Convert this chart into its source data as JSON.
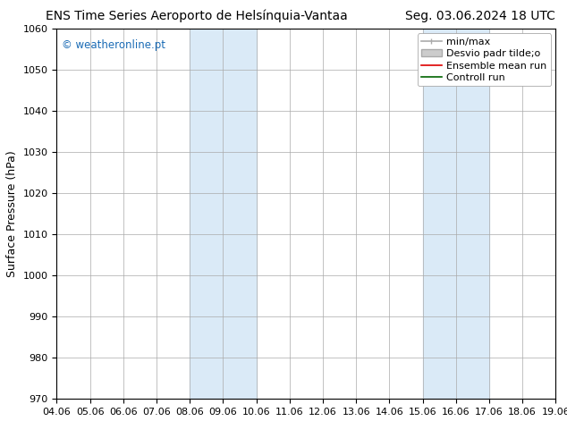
{
  "title_left": "ENS Time Series Aeroporto de Helsínquia-Vantaa",
  "title_right": "Seg. 03.06.2024 18 UTC",
  "ylabel": "Surface Pressure (hPa)",
  "xlabel_ticks": [
    "04.06",
    "05.06",
    "06.06",
    "07.06",
    "08.06",
    "09.06",
    "10.06",
    "11.06",
    "12.06",
    "13.06",
    "14.06",
    "15.06",
    "16.06",
    "17.06",
    "18.06",
    "19.06"
  ],
  "ylim": [
    970,
    1060
  ],
  "yticks": [
    970,
    980,
    990,
    1000,
    1010,
    1020,
    1030,
    1040,
    1050,
    1060
  ],
  "xlim": [
    0,
    15
  ],
  "shaded_regions": [
    {
      "xmin": 4,
      "xmax": 6,
      "color": "#daeaf7"
    },
    {
      "xmin": 11,
      "xmax": 13,
      "color": "#daeaf7"
    }
  ],
  "watermark": "© weatheronline.pt",
  "watermark_color": "#1a6bb5",
  "background_color": "#ffffff",
  "grid_color": "#aaaaaa",
  "title_fontsize": 10,
  "tick_fontsize": 8,
  "ylabel_fontsize": 9,
  "legend_fontsize": 8
}
